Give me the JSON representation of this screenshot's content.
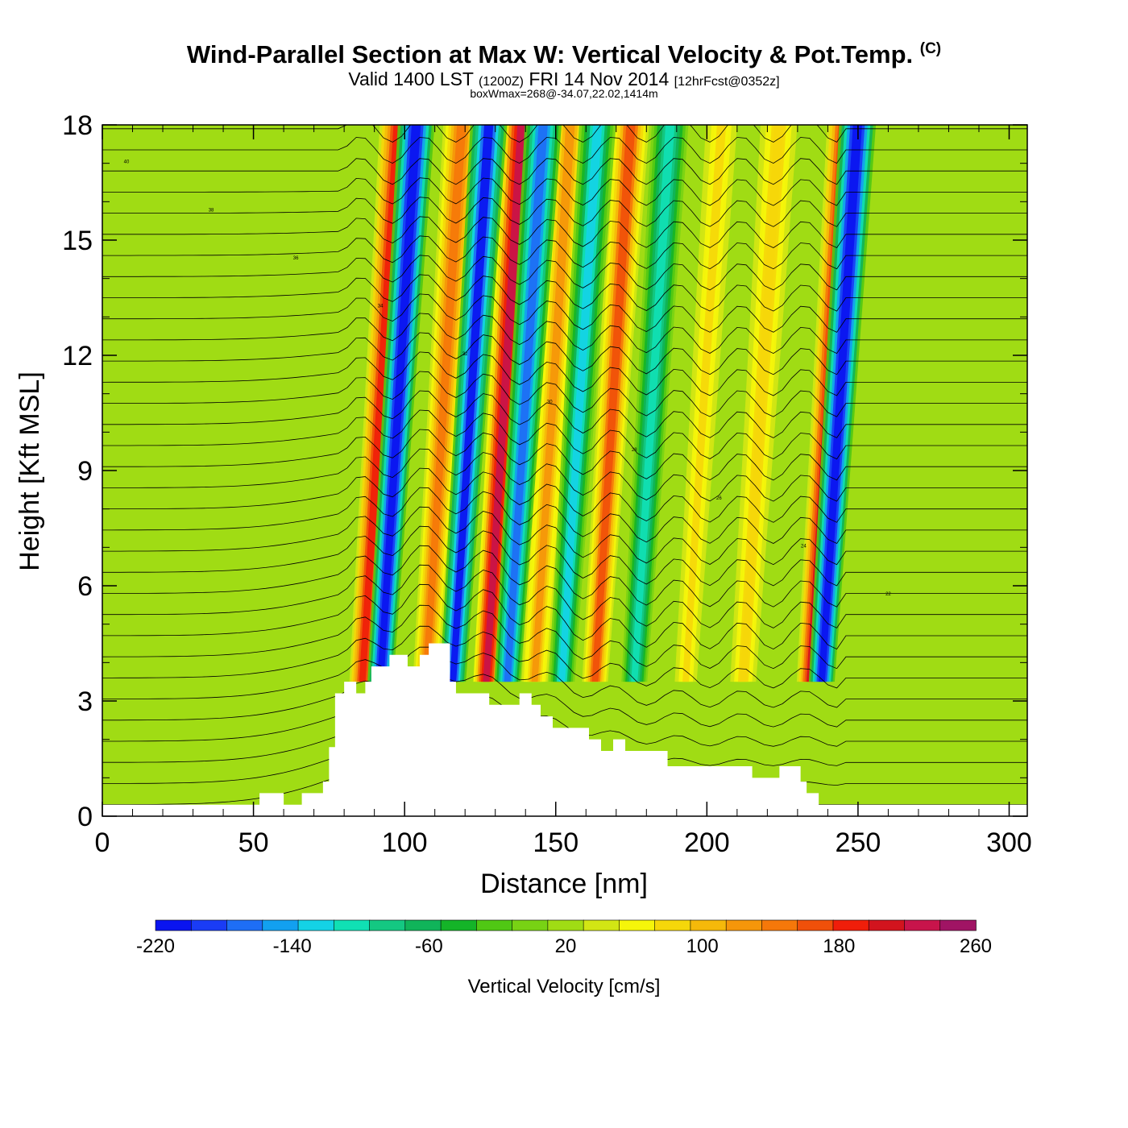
{
  "header": {
    "title_main": "Wind-Parallel Section at Max W: Vertical Velocity & Pot.Temp.",
    "title_copyright": "(C)",
    "valid_prefix": "Valid 1400 LST",
    "valid_utc": "(1200Z)",
    "valid_date": "FRI 14 Nov 2014",
    "forecast": "[12hrFcst@0352z]",
    "box_info": "boxWmax=268@-34.07,22.02,1414m"
  },
  "chart_data": {
    "type": "heatmap",
    "title": "Wind-Parallel Section at Max W: Vertical Velocity & Pot.Temp.",
    "xlabel": "Distance [nm]",
    "ylabel": "Height [Kft MSL]",
    "xlim": [
      0,
      306
    ],
    "ylim": [
      0,
      18
    ],
    "xticks": [
      0,
      50,
      100,
      150,
      200,
      250,
      300
    ],
    "yticks": [
      0,
      3,
      6,
      9,
      12,
      15,
      18
    ],
    "background_w": 20,
    "updrafts": [
      {
        "center_nm": 86,
        "w": 190
      },
      {
        "center_nm": 107,
        "w": 140
      },
      {
        "center_nm": 127,
        "w": 230
      },
      {
        "center_nm": 143,
        "w": 120
      },
      {
        "center_nm": 163,
        "w": 160
      },
      {
        "center_nm": 193,
        "w": 80
      },
      {
        "center_nm": 212,
        "w": 90
      },
      {
        "center_nm": 234,
        "w": 200
      }
    ],
    "downdrafts": [
      {
        "center_nm": 92,
        "w": -220
      },
      {
        "center_nm": 116,
        "w": -200
      },
      {
        "center_nm": 134,
        "w": -170
      },
      {
        "center_nm": 152,
        "w": -120
      },
      {
        "center_nm": 176,
        "w": -100
      },
      {
        "center_nm": 238,
        "w": -220
      }
    ],
    "terrain": [
      {
        "x": 0,
        "h": 0.3
      },
      {
        "x": 52,
        "h": 0.3
      },
      {
        "x": 52,
        "h": 0.6
      },
      {
        "x": 60,
        "h": 0.6
      },
      {
        "x": 60,
        "h": 0.3
      },
      {
        "x": 66,
        "h": 0.3
      },
      {
        "x": 66,
        "h": 0.6
      },
      {
        "x": 73,
        "h": 0.6
      },
      {
        "x": 73,
        "h": 0.9
      },
      {
        "x": 75,
        "h": 0.9
      },
      {
        "x": 75,
        "h": 1.8
      },
      {
        "x": 77,
        "h": 1.8
      },
      {
        "x": 77,
        "h": 3.2
      },
      {
        "x": 80,
        "h": 3.2
      },
      {
        "x": 80,
        "h": 3.5
      },
      {
        "x": 84,
        "h": 3.5
      },
      {
        "x": 84,
        "h": 3.2
      },
      {
        "x": 87,
        "h": 3.2
      },
      {
        "x": 87,
        "h": 3.5
      },
      {
        "x": 89,
        "h": 3.5
      },
      {
        "x": 89,
        "h": 3.9
      },
      {
        "x": 95,
        "h": 3.9
      },
      {
        "x": 95,
        "h": 4.2
      },
      {
        "x": 101,
        "h": 4.2
      },
      {
        "x": 101,
        "h": 3.9
      },
      {
        "x": 105,
        "h": 3.9
      },
      {
        "x": 105,
        "h": 4.2
      },
      {
        "x": 108,
        "h": 4.2
      },
      {
        "x": 108,
        "h": 4.5
      },
      {
        "x": 115,
        "h": 4.5
      },
      {
        "x": 115,
        "h": 3.5
      },
      {
        "x": 117,
        "h": 3.5
      },
      {
        "x": 117,
        "h": 3.2
      },
      {
        "x": 128,
        "h": 3.2
      },
      {
        "x": 128,
        "h": 2.9
      },
      {
        "x": 138,
        "h": 2.9
      },
      {
        "x": 138,
        "h": 3.2
      },
      {
        "x": 142,
        "h": 3.2
      },
      {
        "x": 142,
        "h": 2.9
      },
      {
        "x": 145,
        "h": 2.9
      },
      {
        "x": 145,
        "h": 2.6
      },
      {
        "x": 149,
        "h": 2.6
      },
      {
        "x": 149,
        "h": 2.3
      },
      {
        "x": 161,
        "h": 2.3
      },
      {
        "x": 161,
        "h": 2.0
      },
      {
        "x": 165,
        "h": 2.0
      },
      {
        "x": 165,
        "h": 1.7
      },
      {
        "x": 169,
        "h": 1.7
      },
      {
        "x": 169,
        "h": 2.0
      },
      {
        "x": 173,
        "h": 2.0
      },
      {
        "x": 173,
        "h": 1.7
      },
      {
        "x": 187,
        "h": 1.7
      },
      {
        "x": 187,
        "h": 1.3
      },
      {
        "x": 215,
        "h": 1.3
      },
      {
        "x": 215,
        "h": 1.0
      },
      {
        "x": 224,
        "h": 1.0
      },
      {
        "x": 224,
        "h": 1.3
      },
      {
        "x": 231,
        "h": 1.3
      },
      {
        "x": 231,
        "h": 0.9
      },
      {
        "x": 233,
        "h": 0.9
      },
      {
        "x": 233,
        "h": 0.6
      },
      {
        "x": 237,
        "h": 0.6
      },
      {
        "x": 237,
        "h": 0.3
      },
      {
        "x": 306,
        "h": 0.3
      }
    ],
    "colorbar": {
      "label": "Vertical Velocity [cm/s]",
      "min": -220,
      "max": 260,
      "tick_labels": [
        "-220",
        "-140",
        "-60",
        "20",
        "100",
        "180",
        "260"
      ],
      "colors": [
        "#0a14f0",
        "#1a3cf5",
        "#1e6ef5",
        "#12a0f0",
        "#14d2e6",
        "#10e0b4",
        "#14c882",
        "#10b45a",
        "#14b428",
        "#50c814",
        "#78d214",
        "#a0dc14",
        "#d2e614",
        "#f5f50a",
        "#f5d70a",
        "#f5b90a",
        "#f5960a",
        "#f5780a",
        "#f0500a",
        "#f01e0a",
        "#d2141e",
        "#c8144b",
        "#a01464"
      ]
    },
    "isentrope_labels": [
      "40",
      "38",
      "36",
      "34",
      "32",
      "30",
      "28",
      "26",
      "24",
      "22"
    ]
  }
}
